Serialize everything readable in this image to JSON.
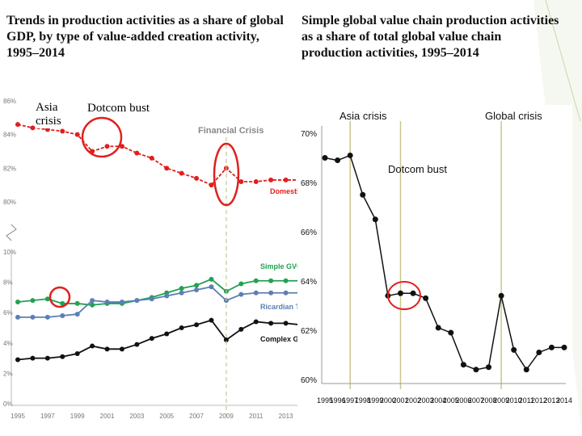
{
  "headings": {
    "left": "Trends in production activities as a share of global GDP, by type of value-added creation activity, 1995–2014",
    "right": "Simple global value chain production activities as a share of total global value chain production activities, 1995–2014"
  },
  "colors": {
    "domestic": "#e0201e",
    "simple_gvc": "#23a153",
    "ricardian": "#5b7fb5",
    "complex_gvc": "#111111",
    "highlight_circle": "#e0201e",
    "crisis_line": "#c9c78c",
    "slide_accent": "#8dc63f"
  },
  "annotations": {
    "asia_crisis_left": "Asia crisis",
    "dotcom_bust_left": "Dotcom bust",
    "financial_crisis": "Financial Crisis",
    "asia_crisis_right": "Asia crisis",
    "global_crisis": "Global crisis",
    "dotcom_bust_right": "Dotcom bust"
  },
  "chart_data": [
    {
      "type": "line",
      "x": [
        1995,
        1996,
        1997,
        1998,
        1999,
        2000,
        2001,
        2002,
        2003,
        2004,
        2005,
        2006,
        2007,
        2008,
        2009,
        2010,
        2011,
        2012,
        2013,
        2014
      ],
      "x_tick_labels": [
        "1995",
        "1997",
        "1999",
        "2001",
        "2003",
        "2005",
        "2007",
        "2009",
        "2011",
        "2013"
      ],
      "panels": [
        {
          "ylim": [
            86,
            80
          ],
          "y_tick_labels": [
            "86%",
            "84%",
            "82%",
            "80%"
          ],
          "series": [
            {
              "name": "Domestic",
              "values": [
                84.6,
                84.4,
                84.3,
                84.2,
                84.0,
                83.0,
                83.3,
                83.3,
                82.9,
                82.6,
                82.0,
                81.7,
                81.4,
                81.0,
                82.0,
                81.2,
                81.2,
                81.3,
                81.3,
                81.3
              ]
            }
          ]
        },
        {
          "ylim": [
            0,
            10
          ],
          "y_tick_labels": [
            "0%",
            "2%",
            "4%",
            "6%",
            "8%",
            "10%"
          ],
          "series": [
            {
              "name": "Simple GVC",
              "values": [
                6.7,
                6.8,
                6.9,
                6.6,
                6.6,
                6.5,
                6.6,
                6.6,
                6.8,
                7.0,
                7.3,
                7.6,
                7.8,
                8.2,
                7.4,
                7.9,
                8.1,
                8.1,
                8.1,
                8.1
              ]
            },
            {
              "name": "Ricardian Trade",
              "values": [
                5.7,
                5.7,
                5.7,
                5.8,
                5.9,
                6.8,
                6.7,
                6.7,
                6.8,
                6.9,
                7.1,
                7.3,
                7.5,
                7.7,
                6.8,
                7.2,
                7.3,
                7.3,
                7.3,
                7.3
              ]
            },
            {
              "name": "Complex GVC",
              "values": [
                2.9,
                3.0,
                3.0,
                3.1,
                3.3,
                3.8,
                3.6,
                3.6,
                3.9,
                4.3,
                4.6,
                5.0,
                5.2,
                5.5,
                4.2,
                4.9,
                5.4,
                5.3,
                5.3,
                5.2
              ]
            }
          ]
        }
      ]
    },
    {
      "type": "line",
      "x": [
        1995,
        1996,
        1997,
        1998,
        1999,
        2000,
        2001,
        2002,
        2003,
        2004,
        2005,
        2006,
        2007,
        2008,
        2009,
        2010,
        2011,
        2012,
        2013,
        2014
      ],
      "x_tick_labels": [
        "1995",
        "1996",
        "1997",
        "1998",
        "1999",
        "2000",
        "2001",
        "2002",
        "2003",
        "2004",
        "2005",
        "2006",
        "2007",
        "2008",
        "2009",
        "2010",
        "2011",
        "2012",
        "2013",
        "2014"
      ],
      "ylim": [
        60,
        70
      ],
      "y_tick_labels": [
        "60%",
        "62%",
        "64%",
        "66%",
        "68%",
        "70%"
      ],
      "values": [
        69.0,
        68.9,
        69.1,
        67.5,
        66.5,
        63.4,
        63.5,
        63.5,
        63.3,
        62.1,
        61.9,
        60.6,
        60.4,
        60.5,
        63.4,
        61.2,
        60.4,
        61.1,
        61.3,
        61.3
      ],
      "vertical_markers": [
        1997,
        2001,
        2009
      ]
    }
  ]
}
